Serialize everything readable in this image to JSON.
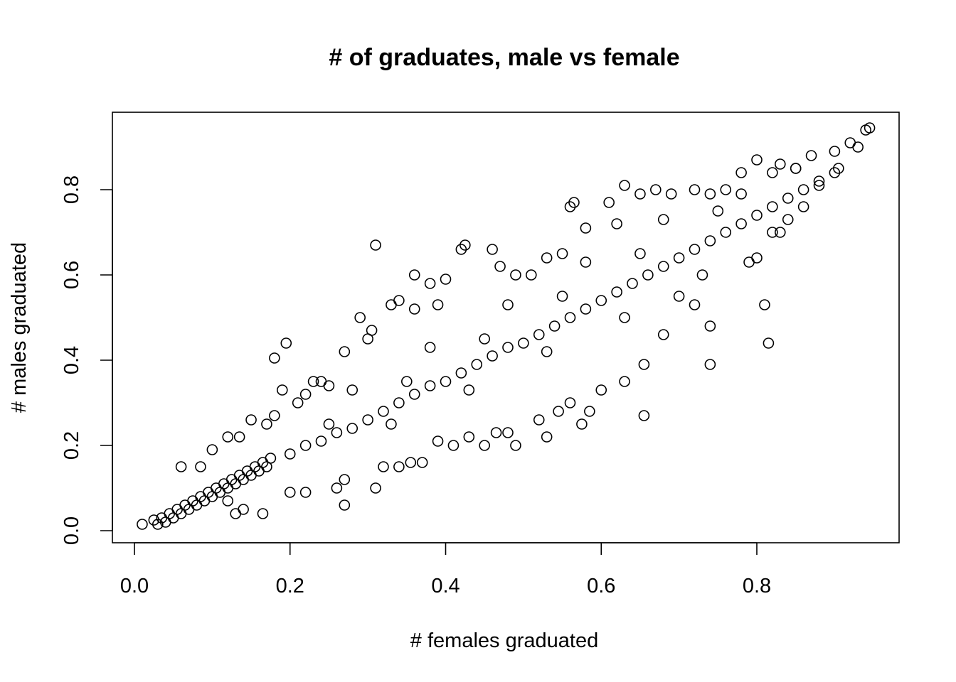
{
  "chart_data": {
    "type": "scatter",
    "title": "# of graduates, male vs female",
    "xlabel": "# females graduated",
    "ylabel": "# males graduated",
    "xlim": [
      0.0,
      0.95
    ],
    "ylim": [
      0.0,
      0.95
    ],
    "xticks": [
      0.0,
      0.2,
      0.4,
      0.6,
      0.8
    ],
    "xtick_labels": [
      "0.0",
      "0.2",
      "0.4",
      "0.6",
      "0.8"
    ],
    "yticks": [
      0.0,
      0.2,
      0.4,
      0.6,
      0.8
    ],
    "ytick_labels": [
      "0.0",
      "0.2",
      "0.4",
      "0.6",
      "0.8"
    ],
    "grid": false,
    "marker": "open-circle",
    "series": [
      {
        "points": [
          [
            0.01,
            0.015
          ],
          [
            0.025,
            0.025
          ],
          [
            0.03,
            0.015
          ],
          [
            0.035,
            0.03
          ],
          [
            0.04,
            0.02
          ],
          [
            0.045,
            0.04
          ],
          [
            0.05,
            0.03
          ],
          [
            0.055,
            0.05
          ],
          [
            0.06,
            0.04
          ],
          [
            0.065,
            0.06
          ],
          [
            0.07,
            0.05
          ],
          [
            0.075,
            0.07
          ],
          [
            0.08,
            0.06
          ],
          [
            0.085,
            0.08
          ],
          [
            0.09,
            0.07
          ],
          [
            0.095,
            0.09
          ],
          [
            0.1,
            0.08
          ],
          [
            0.105,
            0.1
          ],
          [
            0.11,
            0.09
          ],
          [
            0.115,
            0.11
          ],
          [
            0.12,
            0.1
          ],
          [
            0.125,
            0.12
          ],
          [
            0.13,
            0.11
          ],
          [
            0.135,
            0.13
          ],
          [
            0.14,
            0.12
          ],
          [
            0.145,
            0.14
          ],
          [
            0.15,
            0.13
          ],
          [
            0.155,
            0.15
          ],
          [
            0.16,
            0.14
          ],
          [
            0.165,
            0.16
          ],
          [
            0.17,
            0.15
          ],
          [
            0.175,
            0.17
          ],
          [
            0.06,
            0.15
          ],
          [
            0.085,
            0.15
          ],
          [
            0.1,
            0.19
          ],
          [
            0.12,
            0.22
          ],
          [
            0.135,
            0.22
          ],
          [
            0.15,
            0.26
          ],
          [
            0.17,
            0.25
          ],
          [
            0.18,
            0.27
          ],
          [
            0.18,
            0.405
          ],
          [
            0.195,
            0.44
          ],
          [
            0.19,
            0.33
          ],
          [
            0.21,
            0.3
          ],
          [
            0.22,
            0.32
          ],
          [
            0.23,
            0.35
          ],
          [
            0.24,
            0.35
          ],
          [
            0.25,
            0.34
          ],
          [
            0.27,
            0.42
          ],
          [
            0.29,
            0.5
          ],
          [
            0.3,
            0.45
          ],
          [
            0.305,
            0.47
          ],
          [
            0.31,
            0.67
          ],
          [
            0.33,
            0.53
          ],
          [
            0.34,
            0.54
          ],
          [
            0.36,
            0.52
          ],
          [
            0.36,
            0.6
          ],
          [
            0.38,
            0.58
          ],
          [
            0.39,
            0.53
          ],
          [
            0.4,
            0.59
          ],
          [
            0.42,
            0.66
          ],
          [
            0.425,
            0.67
          ],
          [
            0.46,
            0.66
          ],
          [
            0.47,
            0.62
          ],
          [
            0.49,
            0.6
          ],
          [
            0.51,
            0.6
          ],
          [
            0.53,
            0.64
          ],
          [
            0.55,
            0.65
          ],
          [
            0.56,
            0.76
          ],
          [
            0.565,
            0.77
          ],
          [
            0.58,
            0.71
          ],
          [
            0.61,
            0.77
          ],
          [
            0.62,
            0.72
          ],
          [
            0.63,
            0.81
          ],
          [
            0.65,
            0.79
          ],
          [
            0.67,
            0.8
          ],
          [
            0.69,
            0.79
          ],
          [
            0.72,
            0.8
          ],
          [
            0.74,
            0.79
          ],
          [
            0.76,
            0.8
          ],
          [
            0.78,
            0.84
          ],
          [
            0.8,
            0.87
          ],
          [
            0.82,
            0.84
          ],
          [
            0.83,
            0.86
          ],
          [
            0.85,
            0.85
          ],
          [
            0.87,
            0.88
          ],
          [
            0.9,
            0.89
          ],
          [
            0.92,
            0.91
          ],
          [
            0.94,
            0.94
          ],
          [
            0.945,
            0.945
          ],
          [
            0.93,
            0.9
          ],
          [
            0.905,
            0.85
          ],
          [
            0.88,
            0.81
          ],
          [
            0.86,
            0.76
          ],
          [
            0.84,
            0.73
          ],
          [
            0.82,
            0.7
          ],
          [
            0.8,
            0.64
          ],
          [
            0.79,
            0.63
          ],
          [
            0.81,
            0.53
          ],
          [
            0.815,
            0.44
          ],
          [
            0.74,
            0.48
          ],
          [
            0.74,
            0.39
          ],
          [
            0.72,
            0.53
          ],
          [
            0.7,
            0.55
          ],
          [
            0.68,
            0.46
          ],
          [
            0.655,
            0.39
          ],
          [
            0.655,
            0.27
          ],
          [
            0.63,
            0.35
          ],
          [
            0.6,
            0.33
          ],
          [
            0.585,
            0.28
          ],
          [
            0.575,
            0.25
          ],
          [
            0.56,
            0.3
          ],
          [
            0.545,
            0.28
          ],
          [
            0.53,
            0.22
          ],
          [
            0.52,
            0.26
          ],
          [
            0.49,
            0.2
          ],
          [
            0.48,
            0.23
          ],
          [
            0.465,
            0.23
          ],
          [
            0.45,
            0.2
          ],
          [
            0.43,
            0.22
          ],
          [
            0.41,
            0.2
          ],
          [
            0.39,
            0.21
          ],
          [
            0.37,
            0.16
          ],
          [
            0.355,
            0.16
          ],
          [
            0.34,
            0.15
          ],
          [
            0.32,
            0.15
          ],
          [
            0.31,
            0.1
          ],
          [
            0.27,
            0.06
          ],
          [
            0.27,
            0.12
          ],
          [
            0.26,
            0.1
          ],
          [
            0.22,
            0.09
          ],
          [
            0.2,
            0.09
          ],
          [
            0.165,
            0.04
          ],
          [
            0.14,
            0.05
          ],
          [
            0.13,
            0.04
          ],
          [
            0.12,
            0.07
          ],
          [
            0.2,
            0.18
          ],
          [
            0.22,
            0.2
          ],
          [
            0.24,
            0.21
          ],
          [
            0.26,
            0.23
          ],
          [
            0.28,
            0.24
          ],
          [
            0.3,
            0.26
          ],
          [
            0.32,
            0.28
          ],
          [
            0.34,
            0.3
          ],
          [
            0.36,
            0.32
          ],
          [
            0.38,
            0.34
          ],
          [
            0.4,
            0.35
          ],
          [
            0.42,
            0.37
          ],
          [
            0.44,
            0.39
          ],
          [
            0.46,
            0.41
          ],
          [
            0.48,
            0.43
          ],
          [
            0.5,
            0.44
          ],
          [
            0.52,
            0.46
          ],
          [
            0.54,
            0.48
          ],
          [
            0.56,
            0.5
          ],
          [
            0.58,
            0.52
          ],
          [
            0.6,
            0.54
          ],
          [
            0.62,
            0.56
          ],
          [
            0.64,
            0.58
          ],
          [
            0.66,
            0.6
          ],
          [
            0.68,
            0.62
          ],
          [
            0.7,
            0.64
          ],
          [
            0.72,
            0.66
          ],
          [
            0.74,
            0.68
          ],
          [
            0.76,
            0.7
          ],
          [
            0.78,
            0.72
          ],
          [
            0.8,
            0.74
          ],
          [
            0.82,
            0.76
          ],
          [
            0.84,
            0.78
          ],
          [
            0.86,
            0.8
          ],
          [
            0.88,
            0.82
          ],
          [
            0.9,
            0.84
          ],
          [
            0.25,
            0.25
          ],
          [
            0.35,
            0.35
          ],
          [
            0.45,
            0.45
          ],
          [
            0.55,
            0.55
          ],
          [
            0.65,
            0.65
          ],
          [
            0.75,
            0.75
          ],
          [
            0.85,
            0.85
          ],
          [
            0.28,
            0.33
          ],
          [
            0.38,
            0.43
          ],
          [
            0.48,
            0.53
          ],
          [
            0.58,
            0.63
          ],
          [
            0.68,
            0.73
          ],
          [
            0.78,
            0.79
          ],
          [
            0.33,
            0.25
          ],
          [
            0.43,
            0.33
          ],
          [
            0.53,
            0.42
          ],
          [
            0.63,
            0.5
          ],
          [
            0.73,
            0.6
          ],
          [
            0.83,
            0.7
          ]
        ]
      }
    ]
  }
}
